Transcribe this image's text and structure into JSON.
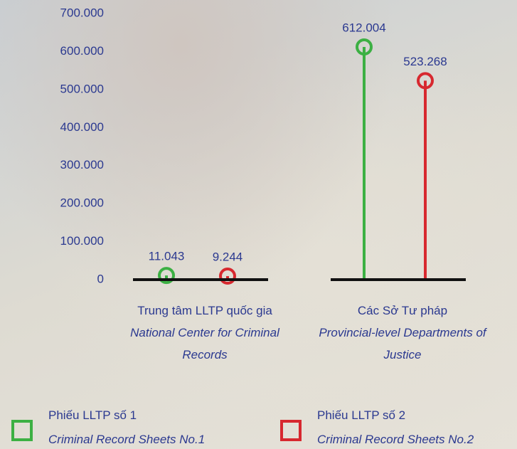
{
  "chart_data": {
    "type": "lollipop",
    "categories": [
      "Trung tâm LLTP quốc gia",
      "Các Sở Tư pháp"
    ],
    "categories_en": [
      "National Center for Criminal Records",
      "Provincial-level Departments of Justice"
    ],
    "series": [
      {
        "name": "Phiếu LLTP số 1",
        "name_en": "Criminal Record Sheets No.1",
        "color": "#3cb043",
        "values": [
          11043,
          612004
        ],
        "value_labels": [
          "11.043",
          "612.004"
        ]
      },
      {
        "name": "Phiếu LLTP số 2",
        "name_en": "Criminal Record Sheets No.2",
        "color": "#d7282f",
        "values": [
          9244,
          523268
        ],
        "value_labels": [
          "9.244",
          "523.268"
        ]
      }
    ],
    "ylim": [
      0,
      700000
    ],
    "yticks": [
      0,
      {
        "value": 100000,
        "label": "100.000"
      },
      {
        "value": 200000,
        "label": "200.000"
      },
      {
        "value": 300000,
        "label": "300.000"
      },
      {
        "value": 400000,
        "label": "400.000"
      },
      {
        "value": 500000,
        "label": "500.000"
      },
      {
        "value": 600000,
        "label": "600.000"
      },
      {
        "value": 700000,
        "label": "700.000"
      }
    ]
  }
}
